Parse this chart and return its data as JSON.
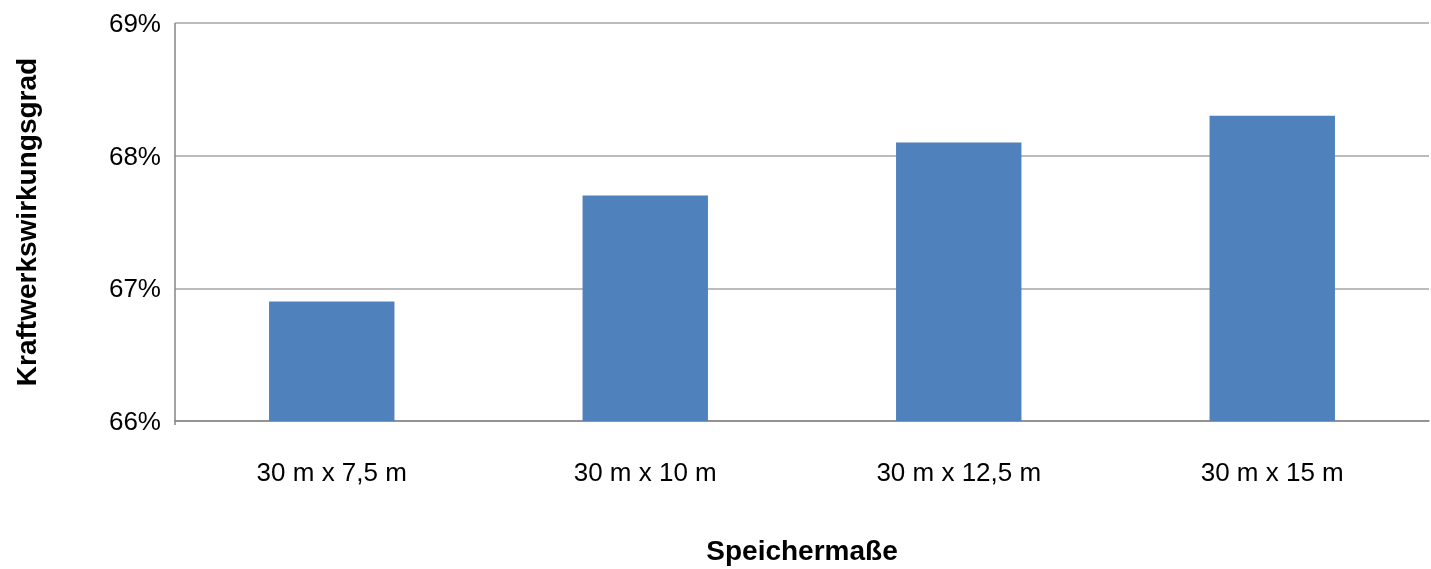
{
  "chart_data": {
    "type": "bar",
    "xlabel": "Speichermaße",
    "ylabel": "Kraftwerkswirkungsgrad",
    "categories": [
      "30 m x 7,5 m",
      "30 m x 10 m",
      "30 m x 12,5 m",
      "30 m x 15 m"
    ],
    "values": [
      66.9,
      67.7,
      68.1,
      68.3
    ],
    "color": "#4f81bd",
    "ylim": [
      66,
      69
    ],
    "yticks": [
      {
        "value": 66,
        "label": "66%"
      },
      {
        "value": 67,
        "label": "67%"
      },
      {
        "value": 68,
        "label": "68%"
      },
      {
        "value": 69,
        "label": "69%"
      }
    ],
    "grid": "y"
  }
}
